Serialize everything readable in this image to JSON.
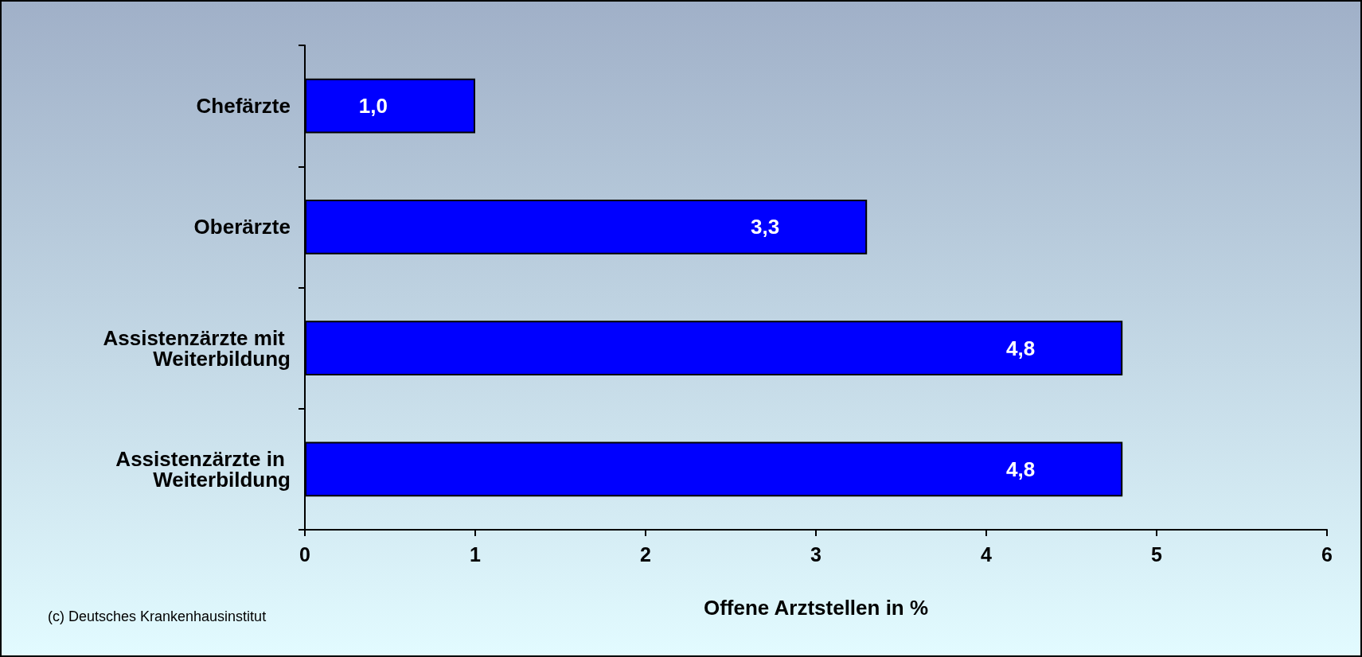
{
  "chart_data": {
    "type": "bar",
    "orientation": "horizontal",
    "xlabel": "Offene Arztstellen in %",
    "categories": [
      "Chefärzte",
      "Oberärzte",
      "Assistenzärzte mit Weiterbildung",
      "Assistenzärzte in Weiterbildung"
    ],
    "values": [
      1.0,
      3.3,
      4.8,
      4.8
    ],
    "color": "#0000ff",
    "value_labels": [
      "1,0",
      "3,3",
      "4,8",
      "4,8"
    ],
    "xlim": [
      0,
      6
    ],
    "xticks": [
      0,
      1,
      2,
      3,
      4,
      5,
      6
    ],
    "grid": false,
    "annotations": [
      "(c) Deutsches Krankenhausinstitut"
    ]
  }
}
